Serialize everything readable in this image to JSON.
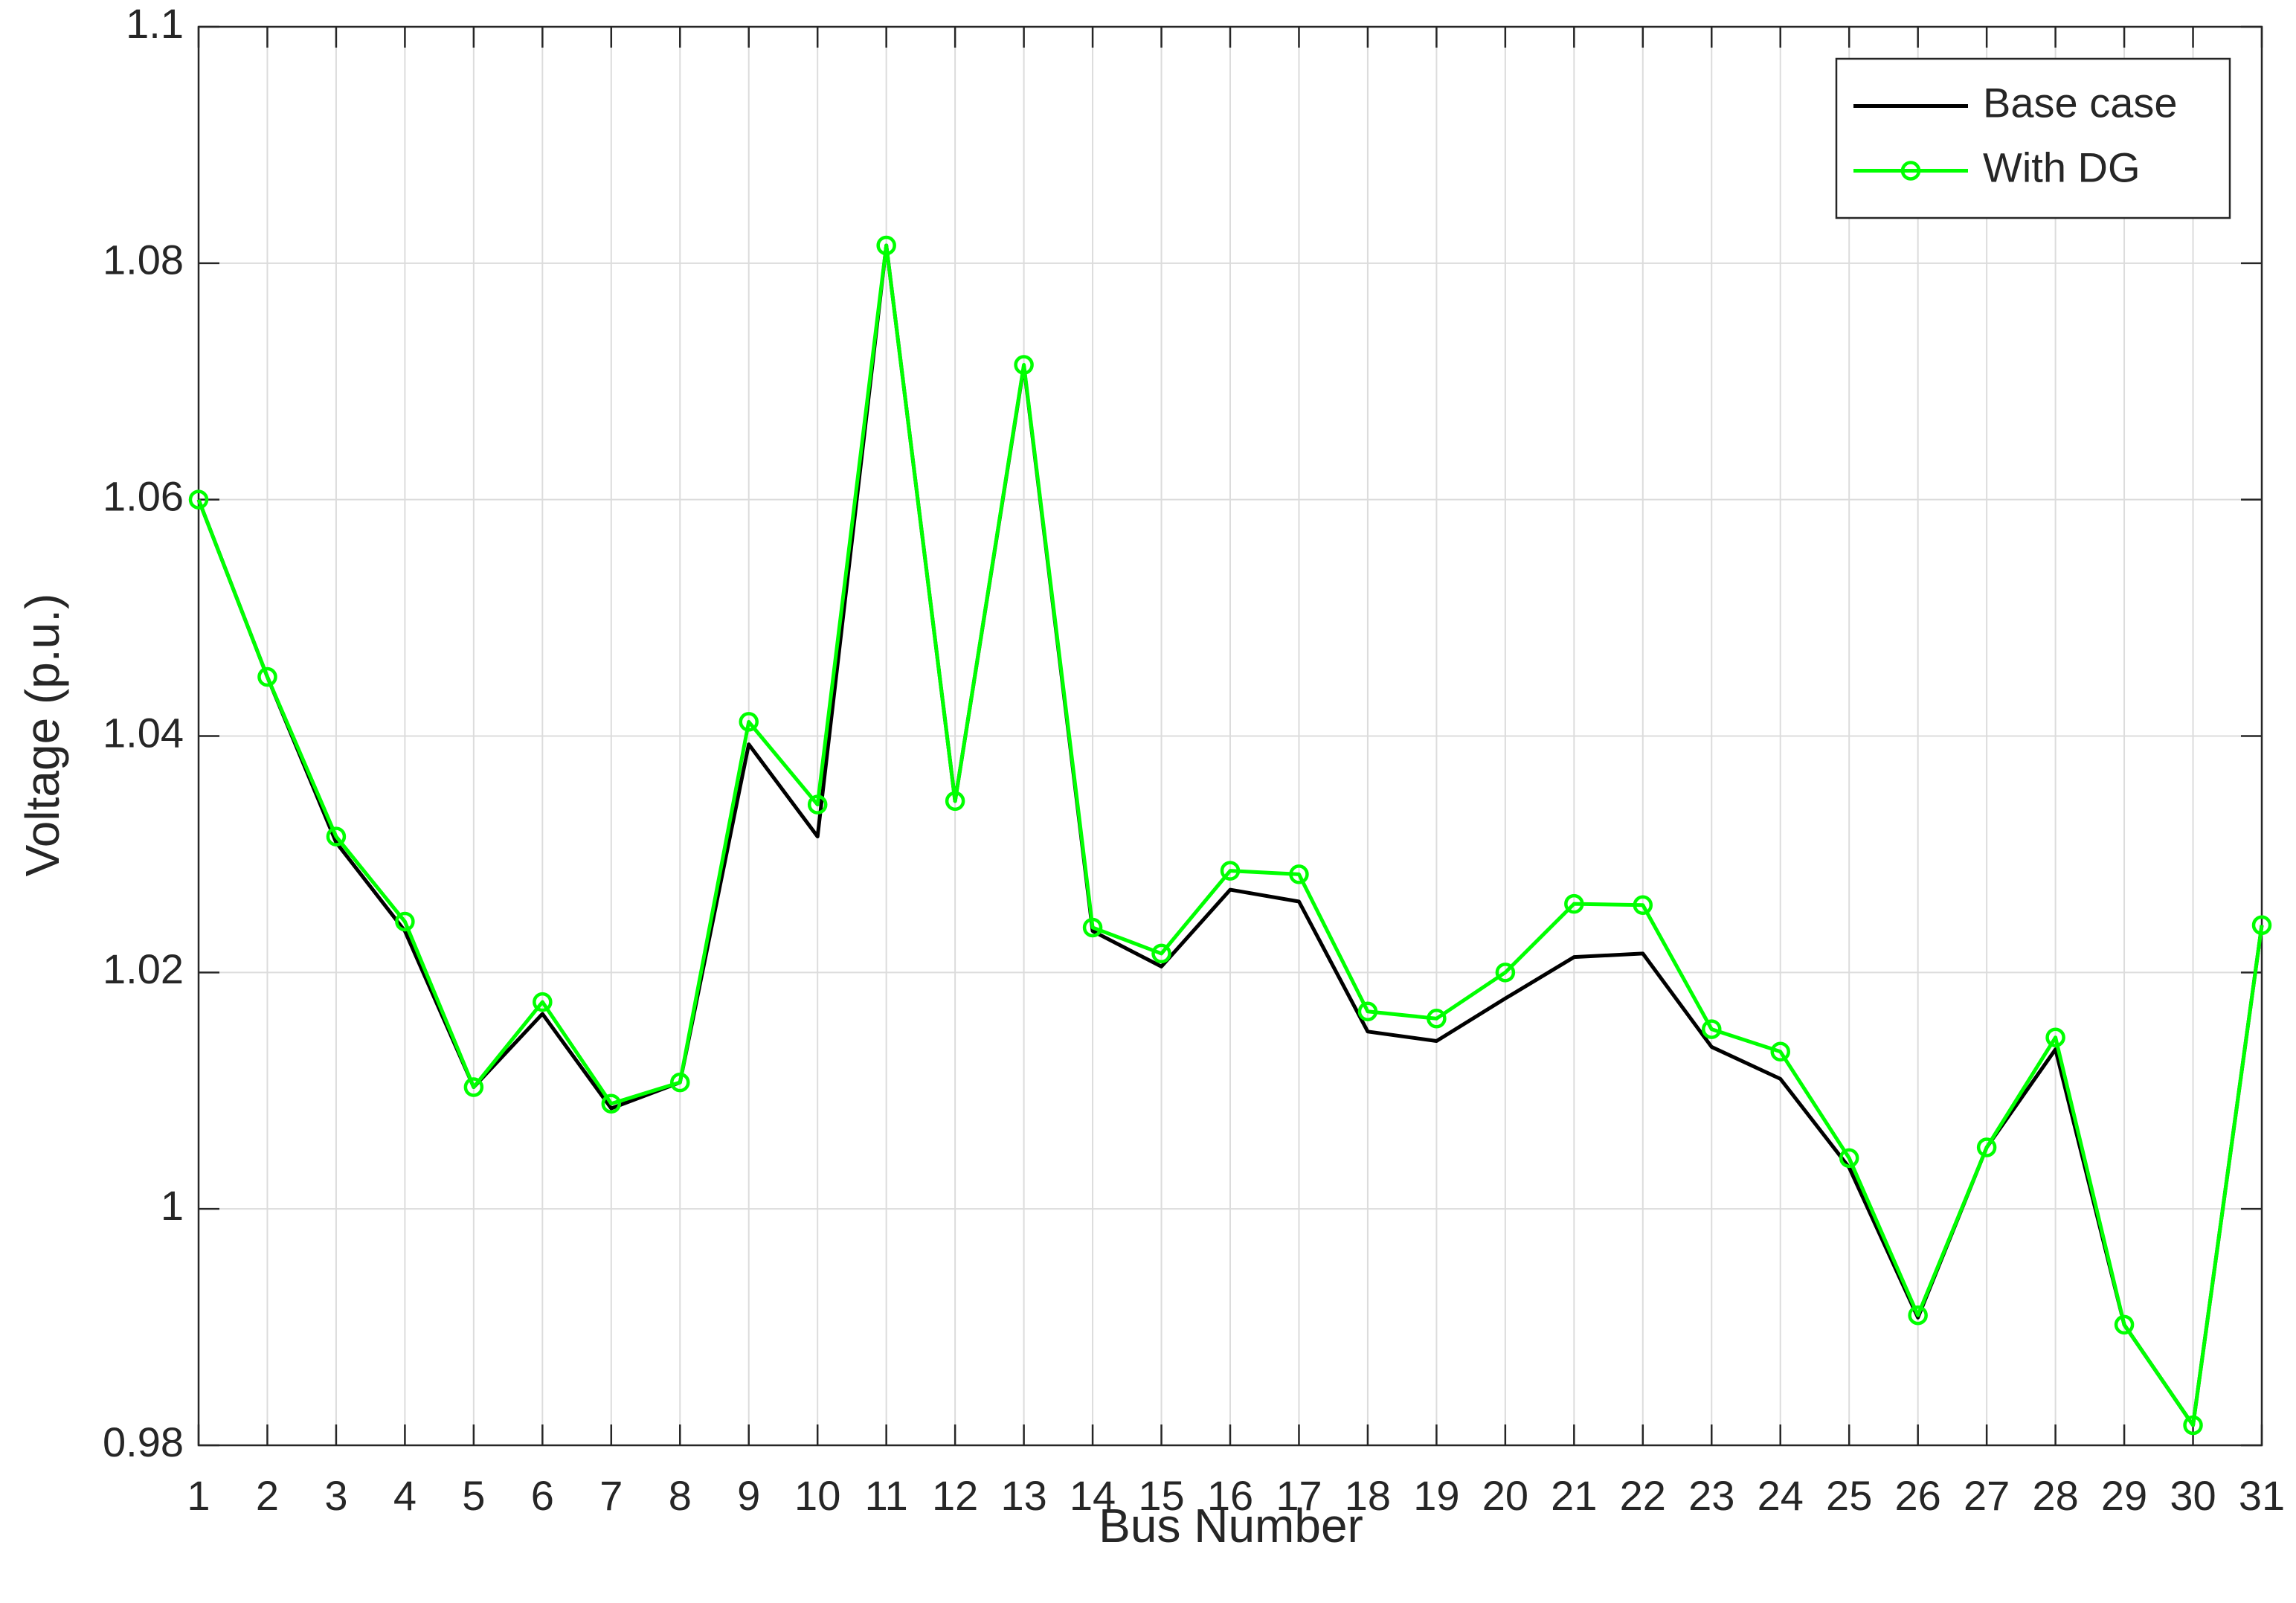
{
  "chart_data": {
    "type": "line",
    "x_label": "Bus Number",
    "y_label": "Voltage (p.u.)",
    "x": [
      1,
      2,
      3,
      4,
      5,
      6,
      7,
      8,
      9,
      10,
      11,
      12,
      13,
      14,
      15,
      16,
      17,
      18,
      19,
      20,
      21,
      22,
      23,
      24,
      25,
      26,
      27,
      28,
      29,
      30,
      31
    ],
    "series": [
      {
        "name": "Base case",
        "color": "#000000",
        "marker": false,
        "values": [
          1.06,
          1.045,
          1.031,
          1.0235,
          1.0103,
          1.0165,
          1.0085,
          1.0107,
          1.0393,
          1.0315,
          1.0815,
          1.0345,
          1.0713,
          1.0235,
          1.0205,
          1.027,
          1.026,
          1.015,
          1.0142,
          1.0178,
          1.0213,
          1.0216,
          1.0137,
          1.011,
          1.0035,
          0.9908,
          1.0052,
          1.0135,
          0.9902,
          0.9817,
          1.024
        ]
      },
      {
        "name": "With DG",
        "color": "#00ff00",
        "marker": true,
        "values": [
          1.06,
          1.045,
          1.0315,
          1.0243,
          1.0103,
          1.0175,
          1.0089,
          1.0107,
          1.0412,
          1.0342,
          1.0815,
          1.0345,
          1.0714,
          1.0238,
          1.0216,
          1.0286,
          1.0283,
          1.0167,
          1.0161,
          1.02,
          1.0258,
          1.0257,
          1.0152,
          1.0133,
          1.0043,
          0.991,
          1.0052,
          1.0145,
          0.9902,
          0.9817,
          1.024
        ]
      }
    ],
    "xlim": [
      1,
      31
    ],
    "xticks": [
      1,
      2,
      3,
      4,
      5,
      6,
      7,
      8,
      9,
      10,
      11,
      12,
      13,
      14,
      15,
      16,
      17,
      18,
      19,
      20,
      21,
      22,
      23,
      24,
      25,
      26,
      27,
      28,
      29,
      30,
      31
    ],
    "ylim": [
      0.98,
      1.1
    ],
    "yticks": [
      0.98,
      1,
      1.02,
      1.04,
      1.06,
      1.08,
      1.1
    ],
    "grid": true,
    "legend": "northeast"
  }
}
